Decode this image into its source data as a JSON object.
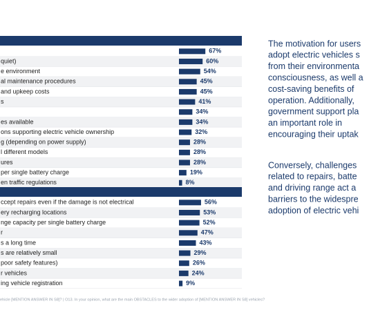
{
  "chart_data": [
    {
      "type": "hbar",
      "color": "#1b3a6b",
      "categories": [
        null,
        "quiet)",
        "e environment",
        "al maintenance procedures",
        "and upkeep costs",
        "s",
        null,
        "es available",
        "ons supporting electric vehicle ownership",
        "g (depending on power supply)",
        "l different models",
        "ures",
        "per single battery charge",
        "en traffic regulations"
      ],
      "values": [
        67,
        60,
        54,
        45,
        45,
        41,
        34,
        34,
        32,
        28,
        28,
        28,
        19,
        8
      ],
      "value_labels": [
        "67%",
        "60%",
        "54%",
        "45%",
        "45%",
        "41%",
        "34%",
        "34%",
        "32%",
        "28%",
        "28%",
        "28%",
        "19%",
        "8%"
      ],
      "xlim": [
        0,
        100
      ]
    },
    {
      "type": "hbar",
      "color": "#1b3a6b",
      "categories": [
        "ccept repairs even if the damage is not electrical",
        "ery recharging locations",
        "nge capacity per single battery charge",
        "r",
        "s a long time",
        "s are relatively small",
        "poor safety features)",
        "r vehicles",
        "ing vehicle registration"
      ],
      "values": [
        56,
        53,
        52,
        47,
        43,
        29,
        26,
        24,
        9
      ],
      "value_labels": [
        "56%",
        "53%",
        "52%",
        "47%",
        "43%",
        "29%",
        "26%",
        "24%",
        "9%"
      ],
      "xlim": [
        0,
        100
      ]
    }
  ],
  "text": {
    "paragraphs": [
      [
        "The motivation for users",
        "adopt electric vehicles s",
        "from their environmenta",
        "consciousness, as well a",
        "cost-saving benefits of",
        "operation. Additionally,",
        "government support pla",
        "an important role in",
        "encouraging their uptak"
      ],
      [
        "Conversely, challenges",
        "related to repairs, batte",
        "and driving range act a",
        "barriers to the widespre",
        "adoption of electric vehi"
      ]
    ],
    "footnote": "ehicle [MENTION ANSWER IN S8]? | O13. In your opinion, what are the main OBSTACLES to the wider adoption of [MENTION ANSWER IN S8] vehicles?"
  }
}
